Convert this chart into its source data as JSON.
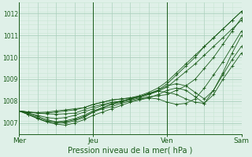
{
  "xlabel": "Pression niveau de la mer( hPa )",
  "bg_color": "#dff0e8",
  "grid_color_major": "#aacfbc",
  "grid_color_minor": "#c8e6d4",
  "line_color": "#1a5c1a",
  "xlim": [
    0,
    72
  ],
  "ylim": [
    1006.5,
    1012.5
  ],
  "yticks": [
    1007,
    1008,
    1009,
    1010,
    1011,
    1012
  ],
  "day_ticks": [
    0,
    24,
    48,
    72
  ],
  "day_labels": [
    "Mer",
    "Jeu",
    "Ven",
    "Sam"
  ],
  "series": [
    [
      0,
      1007.55,
      3,
      1007.5,
      6,
      1007.45,
      9,
      1007.42,
      12,
      1007.4,
      15,
      1007.42,
      18,
      1007.45,
      21,
      1007.6,
      24,
      1007.75,
      27,
      1007.85,
      30,
      1007.95,
      33,
      1008.0,
      36,
      1008.1,
      39,
      1008.2,
      42,
      1008.35,
      45,
      1008.5,
      48,
      1008.8,
      51,
      1009.2,
      54,
      1009.6,
      57,
      1010.0,
      60,
      1010.5,
      63,
      1010.9,
      66,
      1011.3,
      69,
      1011.7,
      72,
      1012.1
    ],
    [
      0,
      1007.55,
      3,
      1007.45,
      6,
      1007.3,
      9,
      1007.15,
      12,
      1007.05,
      15,
      1007.0,
      18,
      1007.1,
      21,
      1007.25,
      24,
      1007.5,
      27,
      1007.7,
      30,
      1007.85,
      33,
      1007.95,
      36,
      1008.05,
      39,
      1008.15,
      42,
      1008.2,
      45,
      1008.25,
      48,
      1008.3,
      51,
      1008.5,
      54,
      1008.7,
      57,
      1009.0,
      60,
      1009.5,
      63,
      1010.0,
      66,
      1010.6,
      69,
      1011.2,
      72,
      1011.8
    ],
    [
      0,
      1007.55,
      3,
      1007.5,
      6,
      1007.48,
      9,
      1007.5,
      12,
      1007.55,
      15,
      1007.6,
      18,
      1007.65,
      21,
      1007.7,
      24,
      1007.85,
      27,
      1007.95,
      30,
      1008.05,
      33,
      1008.1,
      36,
      1008.15,
      39,
      1008.25,
      42,
      1008.4,
      45,
      1008.6,
      48,
      1008.9,
      51,
      1009.3,
      54,
      1009.7,
      57,
      1010.1,
      60,
      1010.5,
      63,
      1010.9,
      66,
      1011.3,
      69,
      1011.7,
      72,
      1012.1
    ],
    [
      0,
      1007.55,
      3,
      1007.4,
      6,
      1007.2,
      9,
      1007.05,
      12,
      1007.0,
      15,
      1007.05,
      18,
      1007.15,
      21,
      1007.3,
      24,
      1007.5,
      27,
      1007.65,
      30,
      1007.75,
      33,
      1007.9,
      36,
      1008.0,
      39,
      1008.1,
      42,
      1008.15,
      45,
      1008.1,
      48,
      1007.95,
      51,
      1007.85,
      54,
      1007.9,
      57,
      1008.1,
      60,
      1008.6,
      63,
      1009.2,
      66,
      1009.8,
      69,
      1010.5,
      72,
      1011.2
    ],
    [
      0,
      1007.55,
      3,
      1007.4,
      6,
      1007.25,
      9,
      1007.1,
      12,
      1007.05,
      15,
      1007.1,
      18,
      1007.2,
      21,
      1007.35,
      24,
      1007.55,
      27,
      1007.7,
      30,
      1007.85,
      33,
      1008.0,
      36,
      1008.1,
      39,
      1008.2,
      42,
      1008.3,
      45,
      1008.5,
      48,
      1008.7,
      51,
      1008.8,
      54,
      1008.7,
      57,
      1008.4,
      60,
      1008.1,
      63,
      1008.5,
      66,
      1009.2,
      69,
      1009.9,
      72,
      1010.5
    ],
    [
      0,
      1007.55,
      3,
      1007.38,
      6,
      1007.2,
      9,
      1007.05,
      12,
      1006.95,
      15,
      1006.9,
      18,
      1007.0,
      21,
      1007.15,
      24,
      1007.35,
      27,
      1007.5,
      30,
      1007.65,
      33,
      1007.8,
      36,
      1007.95,
      39,
      1008.05,
      42,
      1008.15,
      45,
      1008.3,
      48,
      1008.5,
      51,
      1008.6,
      54,
      1008.5,
      57,
      1008.2,
      60,
      1007.9,
      63,
      1008.3,
      66,
      1009.0,
      69,
      1009.6,
      72,
      1010.2
    ],
    [
      0,
      1007.55,
      3,
      1007.5,
      6,
      1007.45,
      9,
      1007.45,
      12,
      1007.5,
      15,
      1007.55,
      18,
      1007.6,
      21,
      1007.7,
      24,
      1007.85,
      27,
      1007.95,
      30,
      1008.05,
      33,
      1008.1,
      36,
      1008.15,
      39,
      1008.2,
      42,
      1008.3,
      45,
      1008.45,
      48,
      1008.65,
      51,
      1009.0,
      54,
      1009.35,
      57,
      1009.7,
      60,
      1010.1,
      63,
      1010.5,
      66,
      1010.9,
      69,
      1011.3,
      72,
      1011.7
    ],
    [
      0,
      1007.55,
      3,
      1007.45,
      6,
      1007.35,
      9,
      1007.25,
      12,
      1007.2,
      15,
      1007.25,
      18,
      1007.35,
      21,
      1007.5,
      24,
      1007.65,
      27,
      1007.8,
      30,
      1007.9,
      33,
      1008.0,
      36,
      1008.1,
      39,
      1008.2,
      42,
      1008.35,
      45,
      1008.45,
      48,
      1008.4,
      51,
      1008.3,
      54,
      1008.1,
      57,
      1007.95,
      60,
      1007.9,
      63,
      1008.5,
      66,
      1009.3,
      69,
      1010.2,
      72,
      1011.0
    ]
  ]
}
